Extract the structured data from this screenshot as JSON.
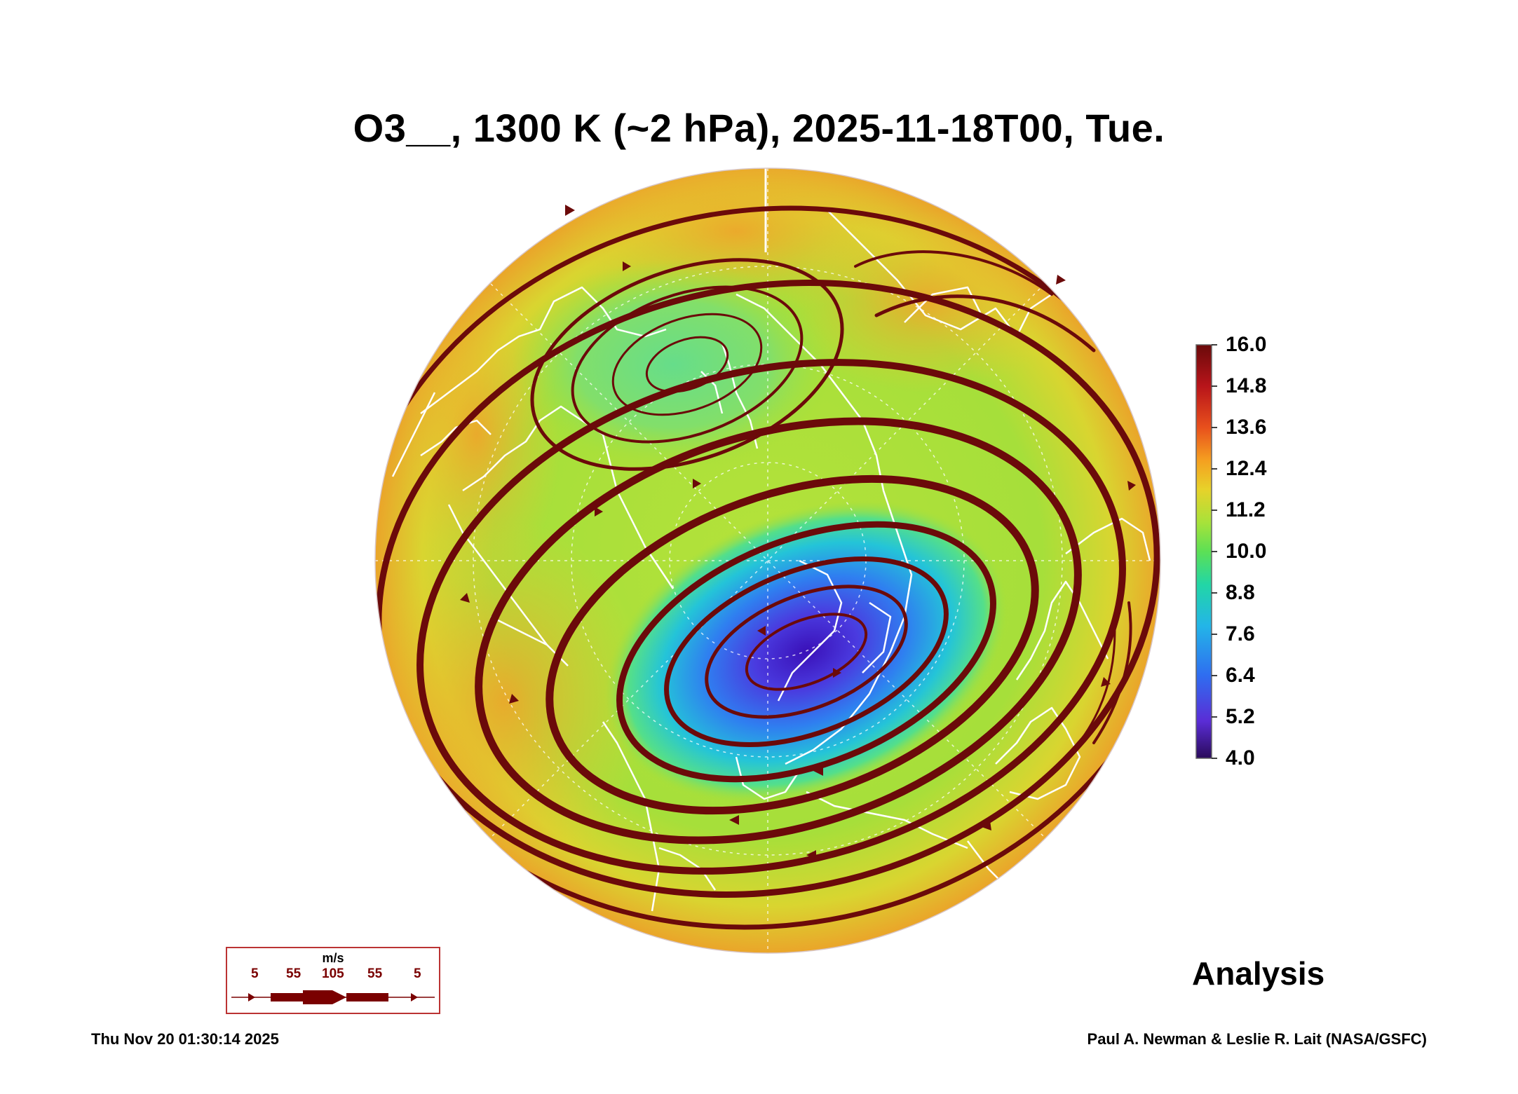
{
  "title": "O3__, 1300 K (~2 hPa), 2025-11-18T00, Tue.",
  "colorbar": {
    "ticks": [
      "16.0",
      "14.8",
      "13.6",
      "12.4",
      "11.2",
      "10.0",
      "8.8",
      "7.6",
      "6.4",
      "5.2",
      "4.0"
    ],
    "colors": [
      "#2a0a5a",
      "#5a2dd6",
      "#2f6df0",
      "#23b5e8",
      "#22d6a6",
      "#5ce055",
      "#a7e23a",
      "#e7d22a",
      "#f5a020",
      "#e8501c",
      "#b8141a",
      "#6a0a0a"
    ]
  },
  "wind_legend": {
    "unit": "m/s",
    "labels": [
      "5",
      "55",
      "105",
      "55",
      "5"
    ]
  },
  "analysis_label": "Analysis",
  "footer": {
    "timestamp": "Thu Nov 20 01:30:14 2025",
    "credit": "Paul A. Newman & Leslie R. Lait (NASA/GSFC)"
  },
  "colors": {
    "streamline": "#6b0a0a",
    "coastline": "#ffffff",
    "low_ozone": "#3a2ad0",
    "background_field": "#a8e03a"
  }
}
